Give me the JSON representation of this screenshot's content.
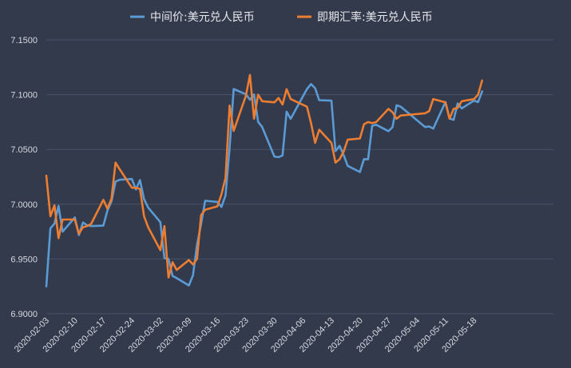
{
  "chart_data": {
    "type": "line",
    "legend_position": "top-center",
    "grid": "horizontal",
    "ylim": [
      6.9,
      7.15
    ],
    "y_ticks": [
      "6.9000",
      "6.9500",
      "7.0000",
      "7.0500",
      "7.1000",
      "7.1500"
    ],
    "x_tick_labels": [
      "2020-02-03",
      "2020-02-10",
      "2020-02-17",
      "2020-02-24",
      "2020-03-02",
      "2020-03-09",
      "2020-03-16",
      "2020-03-23",
      "2020-03-30",
      "2020-04-06",
      "2020-04-13",
      "2020-04-20",
      "2020-04-27",
      "2020-05-04",
      "2020-05-11",
      "2020-05-18"
    ],
    "colors": {
      "background": "#323a4c",
      "grid": "#4a5366",
      "series1": "#5b9bd5",
      "series2": "#ed7d31"
    },
    "series": [
      {
        "name": "中间价:美元兑人民币",
        "points": [
          [
            "2020-02-03",
            6.9249
          ],
          [
            "2020-02-04",
            6.9779
          ],
          [
            "2020-02-05",
            6.9823
          ],
          [
            "2020-02-06",
            6.9985
          ],
          [
            "2020-02-07",
            6.9749
          ],
          [
            "2020-02-10",
            6.9879
          ],
          [
            "2020-02-11",
            6.9718
          ],
          [
            "2020-02-12",
            6.9833
          ],
          [
            "2020-02-13",
            6.9808
          ],
          [
            "2020-02-14",
            6.98
          ],
          [
            "2020-02-17",
            6.9805
          ],
          [
            "2020-02-18",
            6.9942
          ],
          [
            "2020-02-19",
            7.0026
          ],
          [
            "2020-02-20",
            7.0206
          ],
          [
            "2020-02-21",
            7.0223
          ],
          [
            "2020-02-24",
            7.023
          ],
          [
            "2020-02-25",
            7.0135
          ],
          [
            "2020-02-26",
            7.022
          ],
          [
            "2020-02-27",
            7.0046
          ],
          [
            "2020-02-28",
            6.997
          ],
          [
            "2020-03-02",
            6.9836
          ],
          [
            "2020-03-03",
            6.9507
          ],
          [
            "2020-03-04",
            6.95
          ],
          [
            "2020-03-05",
            6.9345
          ],
          [
            "2020-03-06",
            6.9325
          ],
          [
            "2020-03-09",
            6.9258
          ],
          [
            "2020-03-10",
            6.935
          ],
          [
            "2020-03-11",
            6.9629
          ],
          [
            "2020-03-12",
            6.982
          ],
          [
            "2020-03-13",
            7.0031
          ],
          [
            "2020-03-16",
            7.0021
          ],
          [
            "2020-03-17",
            6.9975
          ],
          [
            "2020-03-18",
            7.008
          ],
          [
            "2020-03-19",
            7.0513
          ],
          [
            "2020-03-20",
            7.1052
          ],
          [
            "2020-03-23",
            7.1004
          ],
          [
            "2020-03-24",
            7.0954
          ],
          [
            "2020-03-25",
            7.1002
          ],
          [
            "2020-03-26",
            7.0752
          ],
          [
            "2020-03-27",
            7.0704
          ],
          [
            "2020-03-30",
            7.0435
          ],
          [
            "2020-03-31",
            7.0429
          ],
          [
            "2020-04-01",
            7.0445
          ],
          [
            "2020-04-02",
            7.0845
          ],
          [
            "2020-04-03",
            7.078
          ],
          [
            "2020-04-07",
            7.1052
          ],
          [
            "2020-04-08",
            7.1097
          ],
          [
            "2020-04-09",
            7.1059
          ],
          [
            "2020-04-10",
            7.095
          ],
          [
            "2020-04-13",
            7.0945
          ],
          [
            "2020-04-14",
            7.0485
          ],
          [
            "2020-04-15",
            7.0533
          ],
          [
            "2020-04-16",
            7.045
          ],
          [
            "2020-04-17",
            7.035
          ],
          [
            "2020-04-20",
            7.0294
          ],
          [
            "2020-04-21",
            7.0412
          ],
          [
            "2020-04-22",
            7.041
          ],
          [
            "2020-04-23",
            7.0716
          ],
          [
            "2020-04-24",
            7.0725
          ],
          [
            "2020-04-27",
            7.0667
          ],
          [
            "2020-04-28",
            7.0703
          ],
          [
            "2020-04-29",
            7.0903
          ],
          [
            "2020-04-30",
            7.0891
          ],
          [
            "2020-05-06",
            7.0705
          ],
          [
            "2020-05-07",
            7.071
          ],
          [
            "2020-05-08",
            7.069
          ],
          [
            "2020-05-11",
            7.0933
          ],
          [
            "2020-05-12",
            7.0783
          ],
          [
            "2020-05-13",
            7.077
          ],
          [
            "2020-05-14",
            7.092
          ],
          [
            "2020-05-15",
            7.0875
          ],
          [
            "2020-05-18",
            7.0946
          ],
          [
            "2020-05-19",
            7.0932
          ],
          [
            "2020-05-20",
            7.103
          ]
        ]
      },
      {
        "name": "即期汇率:美元兑人民币",
        "points": [
          [
            "2020-02-03",
            7.026
          ],
          [
            "2020-02-04",
            6.989
          ],
          [
            "2020-02-05",
            6.999
          ],
          [
            "2020-02-06",
            6.969
          ],
          [
            "2020-02-07",
            6.986
          ],
          [
            "2020-02-10",
            6.986
          ],
          [
            "2020-02-11",
            6.973
          ],
          [
            "2020-02-12",
            6.979
          ],
          [
            "2020-02-13",
            6.98
          ],
          [
            "2020-02-14",
            6.982
          ],
          [
            "2020-02-17",
            7.004
          ],
          [
            "2020-02-18",
            6.996
          ],
          [
            "2020-02-19",
            7.005
          ],
          [
            "2020-02-20",
            7.038
          ],
          [
            "2020-02-21",
            7.032
          ],
          [
            "2020-02-24",
            7.015
          ],
          [
            "2020-02-25",
            7.015
          ],
          [
            "2020-02-26",
            7.014
          ],
          [
            "2020-02-27",
            6.989
          ],
          [
            "2020-02-28",
            6.979
          ],
          [
            "2020-03-02",
            6.958
          ],
          [
            "2020-03-03",
            6.98
          ],
          [
            "2020-03-04",
            6.933
          ],
          [
            "2020-03-05",
            6.947
          ],
          [
            "2020-03-06",
            6.94
          ],
          [
            "2020-03-09",
            6.949
          ],
          [
            "2020-03-10",
            6.945
          ],
          [
            "2020-03-11",
            6.95
          ],
          [
            "2020-03-12",
            6.99
          ],
          [
            "2020-03-13",
            6.995
          ],
          [
            "2020-03-16",
            6.998
          ],
          [
            "2020-03-17",
            7.009
          ],
          [
            "2020-03-18",
            7.024
          ],
          [
            "2020-03-19",
            7.09
          ],
          [
            "2020-03-20",
            7.067
          ],
          [
            "2020-03-23",
            7.099
          ],
          [
            "2020-03-24",
            7.118
          ],
          [
            "2020-03-25",
            7.078
          ],
          [
            "2020-03-26",
            7.1
          ],
          [
            "2020-03-27",
            7.094
          ],
          [
            "2020-03-30",
            7.093
          ],
          [
            "2020-03-31",
            7.097
          ],
          [
            "2020-04-01",
            7.091
          ],
          [
            "2020-04-02",
            7.105
          ],
          [
            "2020-04-03",
            7.096
          ],
          [
            "2020-04-07",
            7.089
          ],
          [
            "2020-04-08",
            7.074
          ],
          [
            "2020-04-09",
            7.056
          ],
          [
            "2020-04-10",
            7.068
          ],
          [
            "2020-04-13",
            7.056
          ],
          [
            "2020-04-14",
            7.038
          ],
          [
            "2020-04-15",
            7.041
          ],
          [
            "2020-04-16",
            7.048
          ],
          [
            "2020-04-17",
            7.059
          ],
          [
            "2020-04-20",
            7.06
          ],
          [
            "2020-04-21",
            7.073
          ],
          [
            "2020-04-22",
            7.075
          ],
          [
            "2020-04-23",
            7.074
          ],
          [
            "2020-04-24",
            7.075
          ],
          [
            "2020-04-27",
            7.087
          ],
          [
            "2020-04-28",
            7.084
          ],
          [
            "2020-04-29",
            7.078
          ],
          [
            "2020-04-30",
            7.081
          ],
          [
            "2020-05-06",
            7.083
          ],
          [
            "2020-05-07",
            7.085
          ],
          [
            "2020-05-08",
            7.096
          ],
          [
            "2020-05-11",
            7.093
          ],
          [
            "2020-05-12",
            7.078
          ],
          [
            "2020-05-13",
            7.087
          ],
          [
            "2020-05-14",
            7.088
          ],
          [
            "2020-05-15",
            7.094
          ],
          [
            "2020-05-18",
            7.096
          ],
          [
            "2020-05-19",
            7.1
          ],
          [
            "2020-05-20",
            7.113
          ]
        ]
      }
    ]
  }
}
